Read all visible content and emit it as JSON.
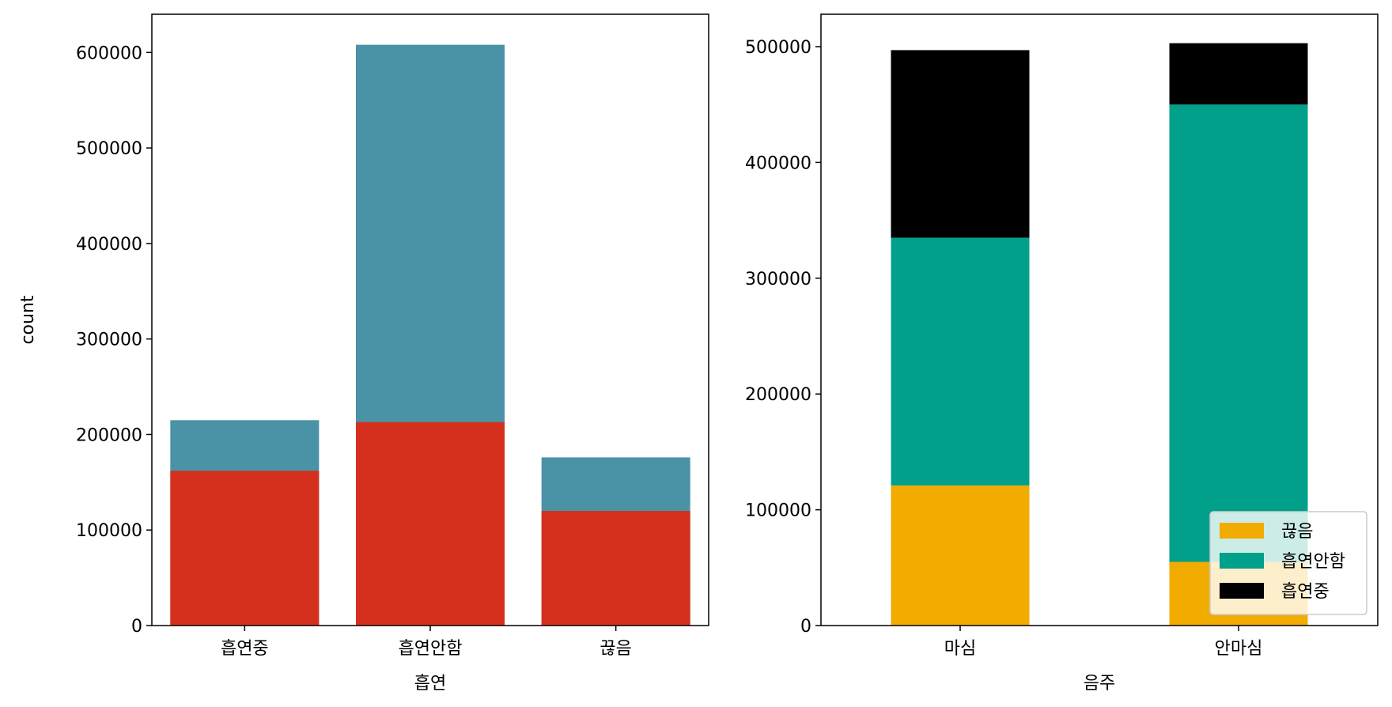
{
  "chart_data": [
    {
      "type": "bar",
      "xlabel": "흡연",
      "ylabel": "count",
      "categories": [
        "흡연중",
        "흡연안함",
        "끊음"
      ],
      "ylim": [
        0,
        640000
      ],
      "yticks": [
        0,
        100000,
        200000,
        300000,
        400000,
        500000,
        600000
      ],
      "grid": false,
      "overlaid": true,
      "series": [
        {
          "values": [
            215000,
            608000,
            176000
          ],
          "color": "#4a92a6"
        },
        {
          "values": [
            162000,
            213000,
            120000
          ],
          "color": "#d5301e"
        }
      ]
    },
    {
      "type": "bar",
      "stacked": true,
      "xlabel": "음주",
      "ylabel": "",
      "categories": [
        "마심",
        "안마심"
      ],
      "ylim": [
        0,
        528000
      ],
      "yticks": [
        0,
        100000,
        200000,
        300000,
        400000,
        500000
      ],
      "grid": false,
      "legend_position": "bottom-right",
      "series": [
        {
          "name": "끊음",
          "values": [
            121000,
            55000
          ],
          "color": "#f2ac00"
        },
        {
          "name": "흡연안함",
          "values": [
            214000,
            395000
          ],
          "color": "#00a08a"
        },
        {
          "name": "흡연중",
          "values": [
            162000,
            53000
          ],
          "color": "#000000"
        }
      ]
    }
  ]
}
